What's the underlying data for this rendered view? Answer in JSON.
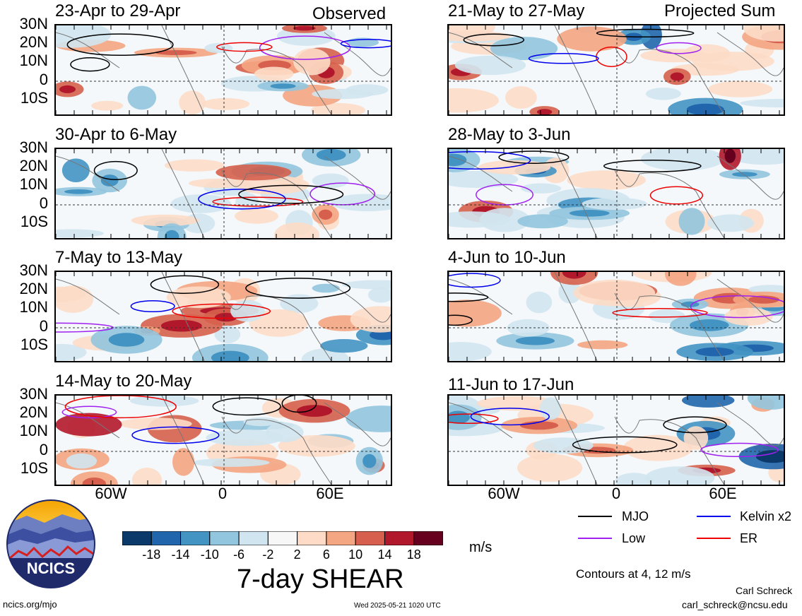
{
  "header": {
    "left_label": "Observed",
    "right_label": "Projected Sum"
  },
  "panels": [
    {
      "title": "23-Apr to 29-Apr"
    },
    {
      "title": "30-Apr to 6-May"
    },
    {
      "title": "7-May to 13-May"
    },
    {
      "title": "14-May to 20-May"
    },
    {
      "title": "21-May to 27-May"
    },
    {
      "title": "28-May to 3-Jun"
    },
    {
      "title": "4-Jun to 10-Jun"
    },
    {
      "title": "11-Jun to 17-Jun"
    }
  ],
  "lat_labels": [
    "30N",
    "20N",
    "10N",
    "0",
    "10S"
  ],
  "lon_labels": [
    "60W",
    "0",
    "60E"
  ],
  "colorbar": {
    "ticks": [
      "-18",
      "-14",
      "-10",
      "-6",
      "-2",
      "2",
      "6",
      "10",
      "14",
      "18"
    ],
    "colors": [
      "#0b3a6a",
      "#2166ac",
      "#4393c3",
      "#92c5de",
      "#d1e5f0",
      "#f7f7f7",
      "#fddbc7",
      "#f4a582",
      "#d6604d",
      "#b2182b",
      "#67001f"
    ],
    "units": "m/s",
    "title": "7-day SHEAR"
  },
  "legend": {
    "items": [
      {
        "label": "MJO",
        "color": "#000000"
      },
      {
        "label": "Kelvin x2",
        "color": "#0000ee"
      },
      {
        "label": "Low",
        "color": "#a020f0"
      },
      {
        "label": "ER",
        "color": "#ee0000"
      }
    ],
    "note": "Contours at 4, 12 m/s"
  },
  "footer": {
    "url": "ncics.org/mjo",
    "timestamp": "Wed 2025-05-21 1020 UTC",
    "author": "Carl Schreck",
    "email": "carl_schreck@ncsu.edu",
    "logo_text": "NCICS"
  }
}
